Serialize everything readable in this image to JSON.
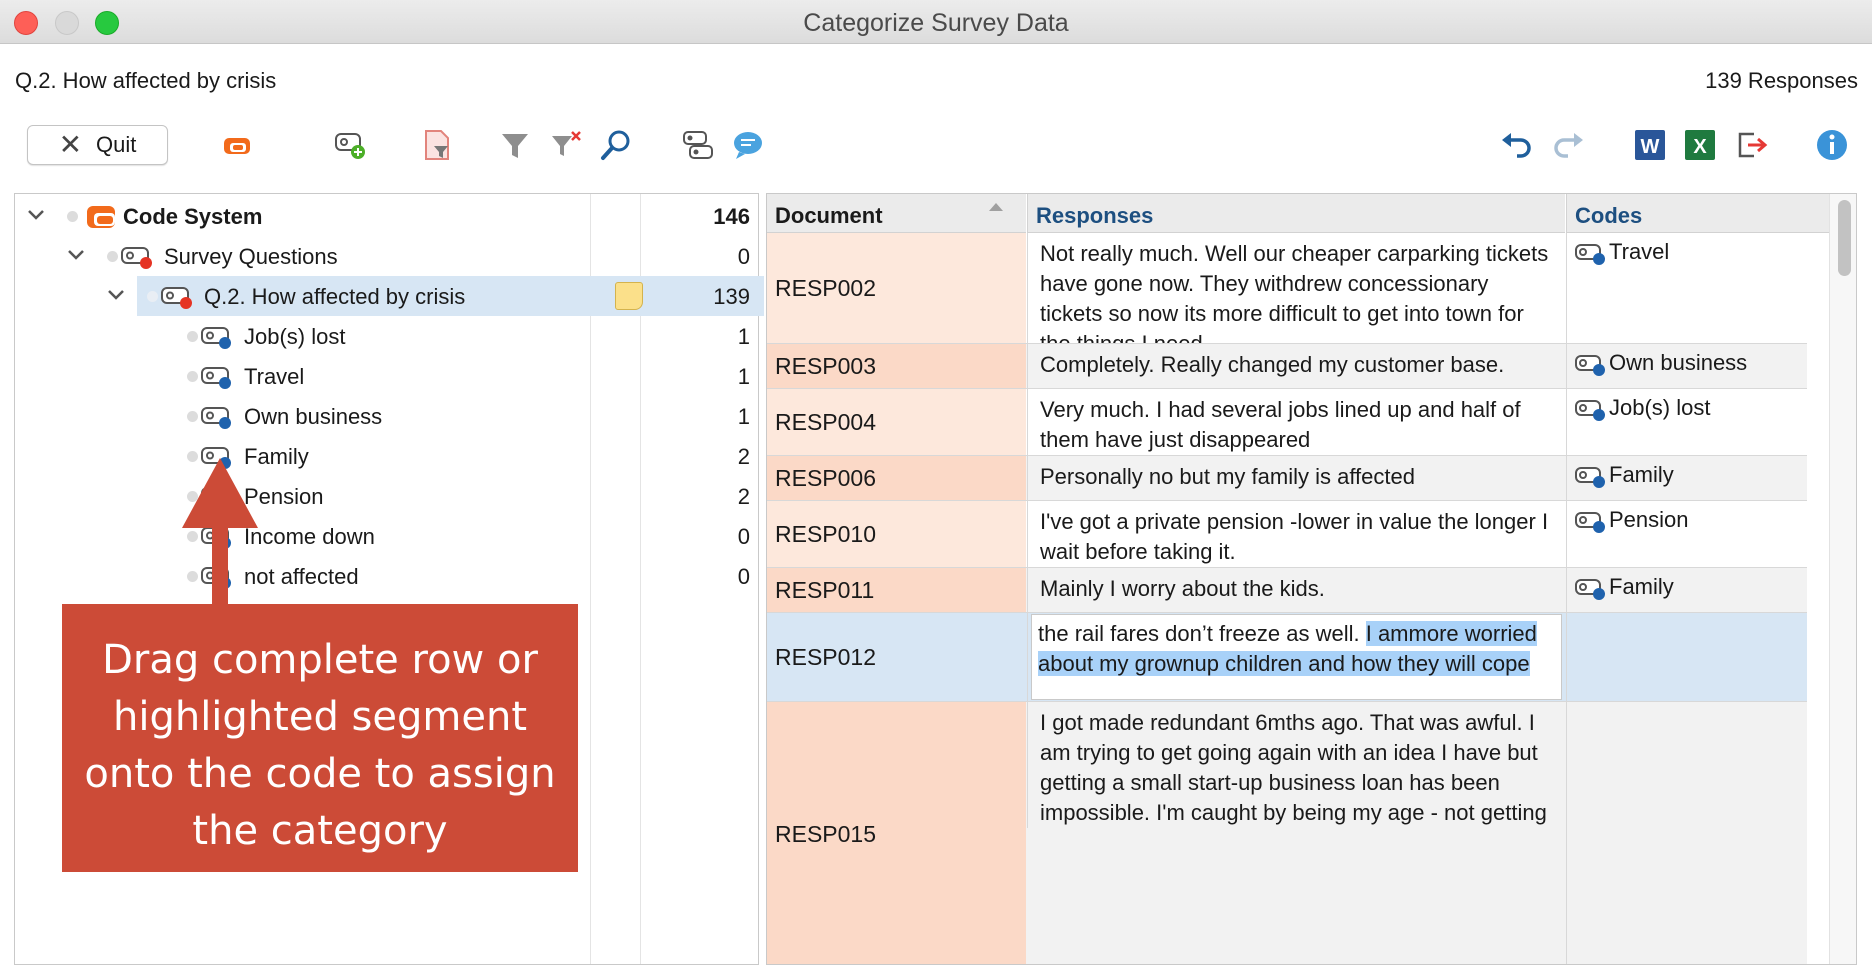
{
  "window": {
    "title": "Categorize Survey Data"
  },
  "header": {
    "question": "Q.2. How affected by crisis",
    "responses": "139 Responses"
  },
  "toolbar": {
    "quit_label": "Quit",
    "left_icons": [
      "code-system-icon",
      "new-code-icon",
      "filter-document-icon",
      "filter-icon",
      "clear-filter-icon",
      "search-icon",
      "code-overview-icon",
      "comment-icon"
    ],
    "right_icons": [
      "undo-icon",
      "redo-icon",
      "word-export-icon",
      "excel-export-icon",
      "exit-icon",
      "info-icon"
    ]
  },
  "colors": {
    "selected_row": "#d7e6f4",
    "doc_cell": "#fde8dc",
    "doc_cell_alt": "#fbd9c7",
    "callout": "#cc4b37",
    "highlight": "#a8d1f8"
  },
  "tree": {
    "items": [
      {
        "label": "Code System",
        "count": "146"
      },
      {
        "label": "Survey Questions",
        "count": "0"
      },
      {
        "label": "Q.2. How affected by crisis",
        "count": "139"
      },
      {
        "label": "Job(s) lost",
        "count": "1"
      },
      {
        "label": "Travel",
        "count": "1"
      },
      {
        "label": "Own business",
        "count": "1"
      },
      {
        "label": "Family",
        "count": "2"
      },
      {
        "label": "Pension",
        "count": "2"
      },
      {
        "label": "Income down",
        "count": "0"
      },
      {
        "label": "not affected",
        "count": "0"
      }
    ]
  },
  "callout": {
    "text": "Drag complete row or highlighted segment onto the code to assign the category"
  },
  "table": {
    "headers": {
      "document": "Document",
      "responses": "Responses",
      "codes": "Codes"
    },
    "rows": [
      {
        "doc": "RESP002",
        "response": "Not really much. Well our cheaper carparking tickets have gone now. They withdrew concessionary tickets so now its more difficult to get into town for the things I need.",
        "code": "Travel"
      },
      {
        "doc": "RESP003",
        "response": "Completely. Really changed my customer base.",
        "code": "Own business"
      },
      {
        "doc": "RESP004",
        "response": "Very much. I had several jobs lined up and half of them have just disappeared",
        "code": "Job(s) lost"
      },
      {
        "doc": "RESP006",
        "response": "Personally no but my family is affected",
        "code": "Family"
      },
      {
        "doc": "RESP010",
        "response": "I've got a private  pension -lower in value the longer I wait before taking it.",
        "code": "Pension"
      },
      {
        "doc": "RESP011",
        "response": "Mainly I worry about the kids.",
        "code": "Family"
      },
      {
        "doc": "RESP012",
        "response_plain": "the rail fares don’t freeze as well. ",
        "response_highlight": "I ammore worried about my grownup children and how they will cope",
        "code": ""
      },
      {
        "doc": "RESP015",
        "response": "I got made redundant 6mths ago. That was awful.  I am trying to get going again with an idea I have but getting a small start-up business loan has been impossible. I'm caught by being my age - not getting my",
        "code": ""
      }
    ]
  }
}
